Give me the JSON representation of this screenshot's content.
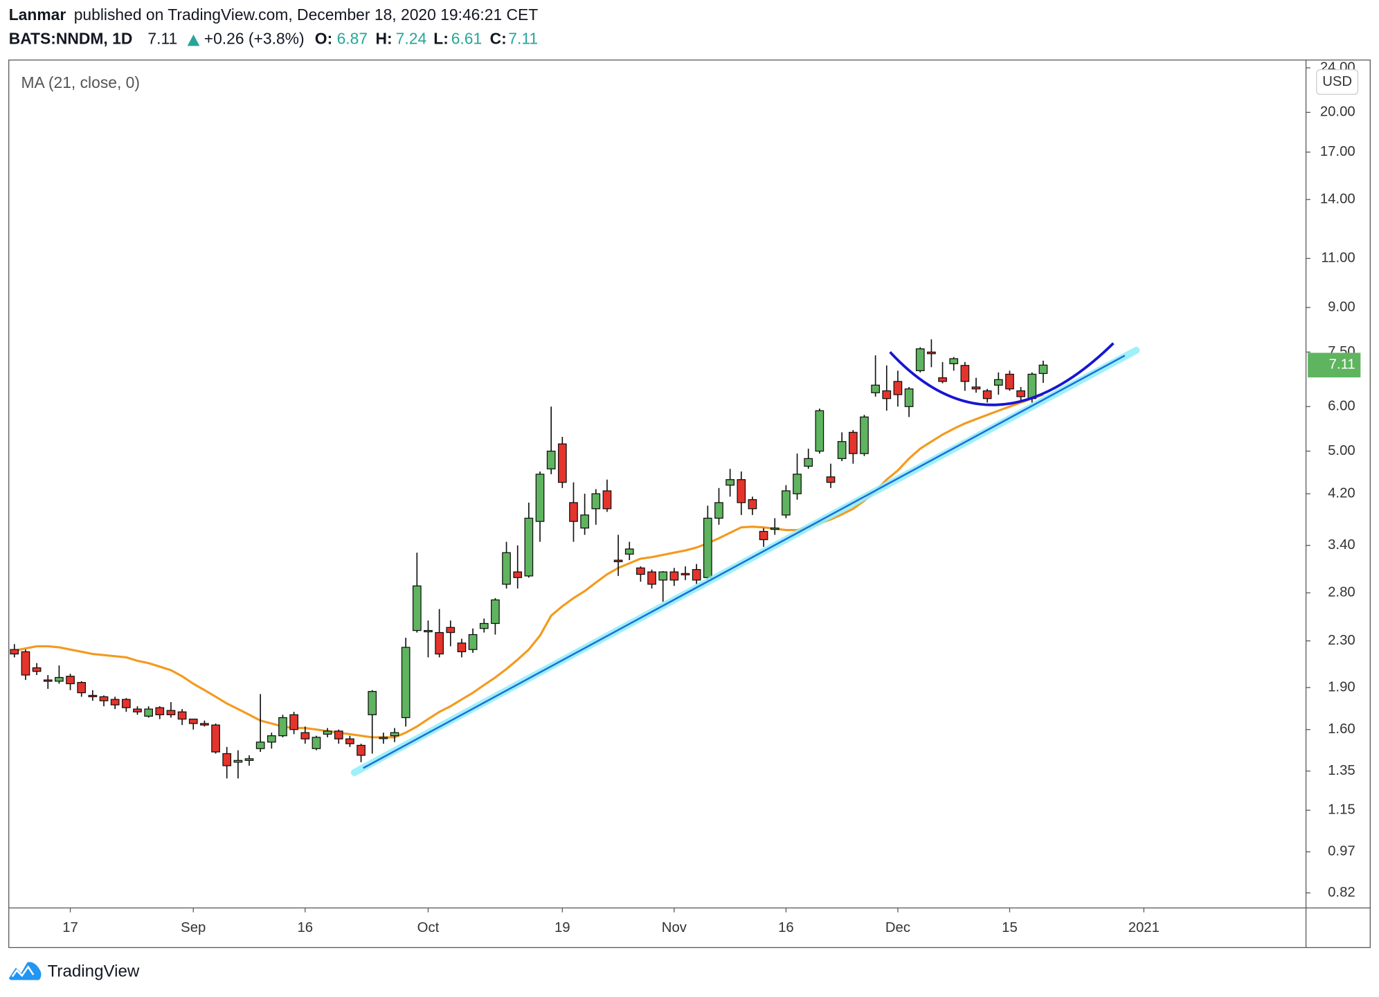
{
  "header": {
    "author": "Lanmar",
    "published": "published on TradingView.com, December 18, 2020 19:46:21 CET",
    "symbol": "BATS:NNDM, 1D",
    "change": "+0.26 (+3.8%)",
    "ohlc_labels": [
      "O:",
      "H:",
      "L:",
      "C:"
    ],
    "currency": "USD"
  },
  "footer": {
    "brand": "TradingView"
  },
  "chart_data": {
    "type": "candlestick",
    "log_scale": true,
    "grid": false,
    "up_color": "#5fb45f",
    "down_color": "#e5342c",
    "categories": [
      null,
      null,
      null,
      null,
      null,
      "17",
      null,
      null,
      null,
      null,
      null,
      null,
      null,
      null,
      null,
      null,
      "Sep",
      null,
      null,
      null,
      null,
      null,
      null,
      null,
      null,
      null,
      "16",
      null,
      null,
      null,
      null,
      null,
      null,
      null,
      null,
      null,
      null,
      "Oct",
      null,
      null,
      null,
      null,
      null,
      null,
      null,
      null,
      null,
      null,
      null,
      "19",
      null,
      null,
      null,
      null,
      null,
      null,
      null,
      null,
      null,
      "Nov",
      null,
      null,
      null,
      null,
      null,
      null,
      null,
      null,
      null,
      "16",
      null,
      null,
      null,
      null,
      null,
      null,
      null,
      null,
      null,
      "Dec",
      null,
      null,
      null,
      null,
      null,
      null,
      null,
      null,
      null,
      "15",
      null,
      null,
      null,
      null,
      null,
      null,
      null,
      null,
      null,
      null,
      null,
      "2021",
      null,
      null,
      null,
      null,
      null,
      null,
      null,
      null,
      null,
      null,
      null,
      null,
      null,
      null
    ],
    "open": [
      2.22,
      2.2,
      2.06,
      1.96,
      1.95,
      1.99,
      1.94,
      1.84,
      1.83,
      1.81,
      1.81,
      1.74,
      1.69,
      1.75,
      1.73,
      1.72,
      1.67,
      1.64,
      1.63,
      1.45,
      1.4,
      1.41,
      1.48,
      1.52,
      1.56,
      1.7,
      1.58,
      1.48,
      1.57,
      1.59,
      1.54,
      1.5,
      1.7,
      1.55,
      1.56,
      1.68,
      2.4,
      2.4,
      2.38,
      2.43,
      2.28,
      2.22,
      2.42,
      2.47,
      2.9,
      3.05,
      3.0,
      3.75,
      4.65,
      5.15,
      4.05,
      3.65,
      3.95,
      4.25,
      3.2,
      3.28,
      3.1,
      3.05,
      2.95,
      3.05,
      3.03,
      3.08,
      2.98,
      3.8,
      4.35,
      4.45,
      4.1,
      3.6,
      3.63,
      3.85,
      4.2,
      4.7,
      5.0,
      4.5,
      4.85,
      5.4,
      4.95,
      6.35,
      6.4,
      6.65,
      6.0,
      6.95,
      7.5,
      6.75,
      7.15,
      7.1,
      6.5,
      6.4,
      6.55,
      6.85,
      6.4,
      6.2,
      6.87,
      null,
      null,
      null,
      null,
      null,
      null,
      null,
      null,
      null,
      null,
      null,
      null,
      null,
      null,
      null,
      null,
      null,
      null,
      null,
      null,
      null,
      null,
      null
    ],
    "high": [
      2.27,
      2.22,
      2.1,
      2.0,
      2.08,
      2.01,
      1.95,
      1.88,
      1.84,
      1.83,
      1.82,
      1.76,
      1.76,
      1.76,
      1.79,
      1.74,
      1.67,
      1.66,
      1.64,
      1.49,
      1.47,
      1.44,
      1.85,
      1.58,
      1.7,
      1.72,
      1.62,
      1.56,
      1.61,
      1.6,
      1.56,
      1.51,
      1.88,
      1.58,
      1.61,
      2.33,
      3.3,
      2.5,
      2.62,
      2.5,
      2.32,
      2.42,
      2.52,
      2.74,
      3.45,
      3.4,
      4.05,
      4.6,
      6.0,
      5.3,
      4.4,
      4.2,
      4.28,
      4.45,
      3.55,
      3.45,
      3.12,
      3.08,
      3.06,
      3.1,
      3.12,
      3.15,
      4.0,
      4.3,
      4.65,
      4.6,
      4.15,
      3.65,
      3.8,
      4.35,
      4.95,
      5.05,
      5.95,
      4.75,
      5.4,
      5.45,
      5.8,
      7.4,
      7.1,
      6.95,
      6.5,
      7.65,
      7.9,
      7.2,
      7.35,
      7.2,
      6.75,
      6.45,
      6.9,
      6.95,
      6.5,
      6.9,
      7.24,
      null,
      null,
      null,
      null,
      null,
      null,
      null,
      null,
      null,
      null,
      null,
      null,
      null,
      null,
      null,
      null,
      null,
      null,
      null,
      null,
      null,
      null,
      null
    ],
    "low": [
      2.15,
      1.96,
      2.0,
      1.89,
      1.93,
      1.88,
      1.83,
      1.8,
      1.76,
      1.74,
      1.72,
      1.7,
      1.68,
      1.67,
      1.68,
      1.63,
      1.6,
      1.62,
      1.45,
      1.31,
      1.31,
      1.38,
      1.46,
      1.48,
      1.55,
      1.57,
      1.51,
      1.47,
      1.55,
      1.51,
      1.49,
      1.4,
      1.45,
      1.51,
      1.52,
      1.62,
      2.38,
      2.15,
      2.15,
      2.25,
      2.15,
      2.19,
      2.38,
      2.36,
      2.85,
      2.85,
      2.98,
      3.45,
      4.55,
      4.3,
      3.45,
      3.55,
      3.7,
      3.9,
      3.0,
      3.2,
      2.93,
      2.85,
      2.7,
      2.88,
      2.95,
      2.9,
      2.95,
      3.7,
      4.15,
      3.85,
      3.85,
      3.38,
      3.55,
      3.8,
      4.1,
      4.65,
      4.95,
      4.3,
      4.8,
      4.75,
      4.9,
      6.25,
      5.9,
      6.0,
      5.75,
      6.9,
      7.05,
      6.6,
      6.95,
      6.4,
      6.35,
      6.1,
      6.3,
      6.4,
      6.15,
      6.1,
      6.61,
      null,
      null,
      null,
      null,
      null,
      null,
      null,
      null,
      null,
      null,
      null,
      null,
      null,
      null,
      null,
      null,
      null,
      null,
      null,
      null,
      null,
      null,
      null
    ],
    "close": [
      2.18,
      2.0,
      2.03,
      1.95,
      1.98,
      1.93,
      1.86,
      1.83,
      1.8,
      1.77,
      1.75,
      1.72,
      1.74,
      1.7,
      1.7,
      1.67,
      1.64,
      1.63,
      1.46,
      1.38,
      1.41,
      1.42,
      1.52,
      1.56,
      1.68,
      1.6,
      1.54,
      1.55,
      1.59,
      1.54,
      1.51,
      1.44,
      1.87,
      1.55,
      1.58,
      2.24,
      2.88,
      2.4,
      2.18,
      2.38,
      2.2,
      2.36,
      2.47,
      2.72,
      3.3,
      2.98,
      3.8,
      4.55,
      5.0,
      4.4,
      3.75,
      3.85,
      4.2,
      3.95,
      3.18,
      3.35,
      3.02,
      2.9,
      3.05,
      2.95,
      3.02,
      2.95,
      3.8,
      4.05,
      4.45,
      4.05,
      3.95,
      3.48,
      3.65,
      4.25,
      4.55,
      4.85,
      5.9,
      4.4,
      5.2,
      4.95,
      5.75,
      6.55,
      6.2,
      6.3,
      6.45,
      7.6,
      7.45,
      6.65,
      7.3,
      6.65,
      6.45,
      6.2,
      6.7,
      6.45,
      6.25,
      6.85,
      7.11,
      null,
      null,
      null,
      null,
      null,
      null,
      null,
      null,
      null,
      null,
      null,
      null,
      null,
      null,
      null,
      null,
      null,
      null,
      null,
      null,
      null,
      null,
      null
    ],
    "series": [
      {
        "name": "MA (21, close, 0)",
        "color": "#f39a1e",
        "values": [
          2.21,
          2.23,
          2.25,
          2.25,
          2.24,
          2.22,
          2.2,
          2.18,
          2.17,
          2.16,
          2.15,
          2.12,
          2.1,
          2.07,
          2.04,
          1.99,
          1.93,
          1.88,
          1.83,
          1.78,
          1.74,
          1.7,
          1.66,
          1.64,
          1.62,
          1.61,
          1.61,
          1.6,
          1.59,
          1.58,
          1.57,
          1.56,
          1.55,
          1.55,
          1.55,
          1.58,
          1.62,
          1.67,
          1.72,
          1.76,
          1.81,
          1.86,
          1.92,
          1.98,
          2.05,
          2.13,
          2.22,
          2.35,
          2.55,
          2.65,
          2.74,
          2.82,
          2.92,
          3.02,
          3.1,
          3.16,
          3.22,
          3.24,
          3.27,
          3.3,
          3.33,
          3.37,
          3.43,
          3.5,
          3.58,
          3.66,
          3.67,
          3.66,
          3.64,
          3.62,
          3.62,
          3.66,
          3.72,
          3.78,
          3.86,
          3.95,
          4.08,
          4.25,
          4.45,
          4.62,
          4.85,
          5.05,
          5.2,
          5.35,
          5.48,
          5.6,
          5.7,
          5.8,
          5.9,
          6.0,
          6.1,
          6.2,
          6.3,
          null,
          null,
          null,
          null,
          null,
          null,
          null,
          null,
          null,
          null,
          null,
          null,
          null,
          null,
          null,
          null,
          null,
          null,
          null,
          null,
          null,
          null,
          null
        ]
      }
    ],
    "ylim": [
      0.771,
      24.78
    ],
    "yticks": [
      0.82,
      0.97,
      1.15,
      1.35,
      {
        "value": 1.6,
        "label": "1.60"
      },
      {
        "value": 1.9,
        "label": "1.90"
      },
      {
        "value": 2.3,
        "label": "2.30"
      },
      {
        "value": 2.8,
        "label": "2.80"
      },
      {
        "value": 3.4,
        "label": "3.40"
      },
      {
        "value": 4.2,
        "label": "4.20"
      },
      {
        "value": 5,
        "label": "5.00"
      },
      {
        "value": 6,
        "label": "6.00"
      },
      {
        "value": 7.5,
        "label": "7.50"
      },
      {
        "value": 9,
        "label": "9.00"
      },
      {
        "value": 11,
        "label": "11.00"
      },
      {
        "value": 14,
        "label": "14.00"
      },
      {
        "value": 17,
        "label": "17.00"
      },
      {
        "value": 20,
        "label": "20.00"
      },
      {
        "value": 24,
        "label": "24.00"
      }
    ]
  }
}
